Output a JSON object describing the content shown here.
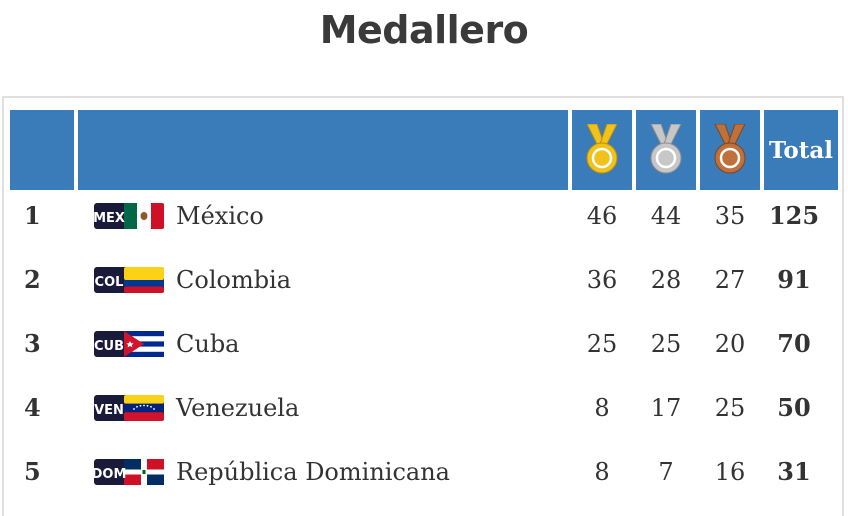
{
  "title": "Medallero",
  "header": {
    "total_label": "Total"
  },
  "colors": {
    "header_bg": "#3a7bb9",
    "gold": "#f1c21b",
    "silver": "#c7c7c7",
    "bronze": "#c0703a"
  },
  "rows": [
    {
      "rank": "1",
      "code": "MEX",
      "country": "México",
      "gold": "46",
      "silver": "44",
      "bronze": "35",
      "total": "125"
    },
    {
      "rank": "2",
      "code": "COL",
      "country": "Colombia",
      "gold": "36",
      "silver": "28",
      "bronze": "27",
      "total": "91"
    },
    {
      "rank": "3",
      "code": "CUB",
      "country": "Cuba",
      "gold": "25",
      "silver": "25",
      "bronze": "20",
      "total": "70"
    },
    {
      "rank": "4",
      "code": "VEN",
      "country": "Venezuela",
      "gold": "8",
      "silver": "17",
      "bronze": "25",
      "total": "50"
    },
    {
      "rank": "5",
      "code": "DOM",
      "country": "República Dominicana",
      "gold": "8",
      "silver": "7",
      "bronze": "16",
      "total": "31"
    }
  ]
}
